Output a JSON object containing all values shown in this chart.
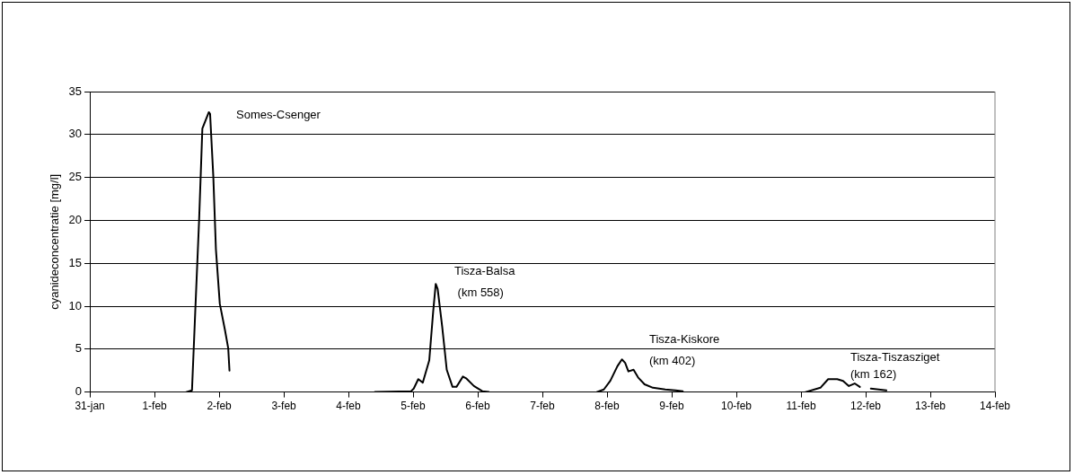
{
  "chart_data": {
    "type": "line",
    "ylabel": "cyanideconcentratie [mg/l]",
    "xlim": [
      "--01-31",
      "--02-14"
    ],
    "xticks": [
      {
        "value": "--01-31",
        "label": "31-jan"
      },
      {
        "value": "--02-01",
        "label": "1-feb"
      },
      {
        "value": "--02-02",
        "label": "2-feb"
      },
      {
        "value": "--02-03",
        "label": "3-feb"
      },
      {
        "value": "--02-04",
        "label": "4-feb"
      },
      {
        "value": "--02-05",
        "label": "5-feb"
      },
      {
        "value": "--02-06",
        "label": "6-feb"
      },
      {
        "value": "--02-07",
        "label": "7-feb"
      },
      {
        "value": "--02-08",
        "label": "8-feb"
      },
      {
        "value": "--02-09",
        "label": "9-feb"
      },
      {
        "value": "--02-10",
        "label": "10-feb"
      },
      {
        "value": "--02-11",
        "label": "11-feb"
      },
      {
        "value": "--02-12",
        "label": "12-feb"
      },
      {
        "value": "--02-13",
        "label": "13-feb"
      },
      {
        "value": "--02-14",
        "label": "14-feb"
      }
    ],
    "ylim": [
      0,
      35
    ],
    "yticks": [
      0,
      5,
      10,
      15,
      20,
      25,
      30,
      35
    ],
    "grid": "y",
    "legend": false,
    "marker": "none",
    "line_style": "solid",
    "series": [
      {
        "color": "#000000",
        "x": [
          "--02-01T11:46",
          "--02-01T13:55",
          "--02-01T15:07",
          "--02-01T16:34",
          "--02-01T17:46",
          "--02-01T20:10",
          "--02-01T20:38",
          "--02-01T21:50",
          "--02-01T22:48",
          "--02-02T00:14",
          "--02-02T02:10",
          "--02-02T03:22",
          "--02-02T03:50"
        ],
        "values": [
          0,
          0.2,
          9.3,
          20.1,
          30.7,
          32.6,
          32.4,
          25.1,
          16.6,
          10.3,
          7.2,
          5.1,
          2.5
        ]
      },
      {
        "color": "#000000",
        "x": [
          "--02-04T09:50",
          "--02-04T23:17",
          "--02-05T00:14",
          "--02-05T01:55",
          "--02-05T03:36",
          "--02-05T06:00",
          "--02-05T07:26",
          "--02-05T08:24",
          "--02-05T09:07",
          "--02-05T10:48",
          "--02-05T12:29",
          "--02-05T14:38",
          "--02-05T16:05",
          "--02-05T18:29",
          "--02-05T19:41",
          "--02-05T22:34",
          "--02-06T01:41",
          "--02-06T04:05"
        ],
        "values": [
          0,
          0.1,
          0.4,
          1.5,
          1.1,
          3.7,
          9.3,
          12.6,
          12,
          7.6,
          2.6,
          0.6,
          0.6,
          1.8,
          1.6,
          0.7,
          0.1,
          0
        ]
      },
      {
        "color": "#000000",
        "x": [
          "--02-07T20:10",
          "--02-07T22:48",
          "--02-08T01:12",
          "--02-08T03:50",
          "--02-08T05:31",
          "--02-08T06:43",
          "--02-08T07:55",
          "--02-08T09:50",
          "--02-08T11:31",
          "--02-08T13:55",
          "--02-08T17:02",
          "--02-08T21:36",
          "--02-09T01:26",
          "--02-09T04:05"
        ],
        "values": [
          0,
          0.3,
          1.3,
          3,
          3.8,
          3.4,
          2.4,
          2.6,
          1.7,
          0.9,
          0.5,
          0.3,
          0.2,
          0.1
        ]
      },
      {
        "color": "#000000",
        "x": [
          "--02-11T01:41",
          "--02-11T07:12",
          "--02-11T10:05",
          "--02-11T13:26",
          "--02-11T15:36",
          "--02-11T17:46",
          "--02-11T19:55",
          "--02-11T21:50",
          "--02-12T00:00",
          "--02-12T01:55",
          "--02-12T07:41"
        ],
        "values": [
          0,
          0.5,
          1.5,
          1.5,
          1.3,
          0.7,
          1,
          0.6,
          null,
          0.4,
          0.2
        ]
      }
    ],
    "annotations": [
      "Somes-Csenger",
      "Tisza-Balsa\n (km 558)",
      "Tisza-Kiskore\n(km 402)",
      "Tisza-Tiszasziget\n(km 162)"
    ]
  }
}
